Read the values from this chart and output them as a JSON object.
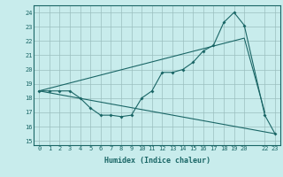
{
  "xlabel": "Humidex (Indice chaleur)",
  "bg_color": "#c8ecec",
  "grid_color": "#9bbfbf",
  "line_color": "#1a6666",
  "xlim": [
    -0.5,
    23.5
  ],
  "ylim": [
    14.7,
    24.5
  ],
  "yticks": [
    15,
    16,
    17,
    18,
    19,
    20,
    21,
    22,
    23,
    24
  ],
  "xtick_positions": [
    0,
    1,
    2,
    3,
    4,
    5,
    6,
    7,
    8,
    9,
    10,
    11,
    12,
    13,
    14,
    15,
    16,
    17,
    18,
    19,
    20,
    22,
    23
  ],
  "xtick_labels": [
    "0",
    "1",
    "2",
    "3",
    "4",
    "5",
    "6",
    "7",
    "8",
    "9",
    "10",
    "11",
    "12",
    "13",
    "14",
    "15",
    "16",
    "17",
    "18",
    "19",
    "20",
    "22",
    "23"
  ],
  "line1_x": [
    0,
    1,
    2,
    3,
    4,
    5,
    6,
    7,
    8,
    9,
    10,
    11,
    12,
    13,
    14,
    15,
    16,
    17,
    18,
    19,
    20,
    22,
    23
  ],
  "line1_y": [
    18.5,
    18.5,
    18.5,
    18.5,
    18.0,
    17.3,
    16.8,
    16.8,
    16.7,
    16.8,
    18.0,
    18.5,
    19.8,
    19.8,
    20.0,
    20.5,
    21.3,
    21.7,
    23.3,
    24.0,
    23.1,
    16.8,
    15.5
  ],
  "line2_x": [
    0,
    20,
    22
  ],
  "line2_y": [
    18.5,
    22.2,
    17.0
  ],
  "line3_x": [
    0,
    23
  ],
  "line3_y": [
    18.5,
    15.5
  ],
  "marker_style": "D",
  "marker_size": 2.0,
  "line_width": 0.8,
  "tick_fontsize": 5.0,
  "xlabel_fontsize": 6.0
}
